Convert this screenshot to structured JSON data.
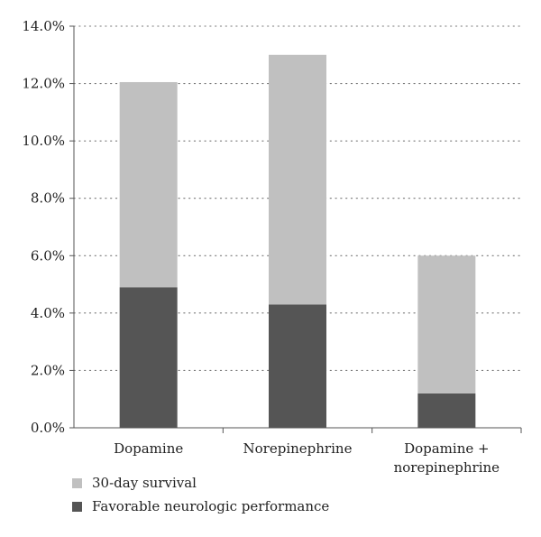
{
  "chart_data": {
    "type": "bar",
    "stacked": true,
    "categories": [
      [
        "Dopamine"
      ],
      [
        "Norepinephrine"
      ],
      [
        "Dopamine +",
        "norepinephrine"
      ]
    ],
    "series": [
      {
        "name": "Favorable neurologic performance",
        "values": [
          4.9,
          4.3,
          1.2
        ],
        "color": "#555555"
      },
      {
        "name": "30-day survival",
        "values": [
          7.15,
          8.7,
          4.8
        ],
        "color": "#c0c0c0"
      }
    ],
    "totals": [
      12.05,
      13.0,
      6.0
    ],
    "title": "",
    "xlabel": "",
    "ylabel": "",
    "ylim": [
      0,
      14
    ],
    "yticks": [
      "0.0%",
      "2.0%",
      "4.0%",
      "6.0%",
      "8.0%",
      "10.0%",
      "12.0%",
      "14.0%"
    ],
    "grid": true,
    "legend": {
      "placement": "bottom-left",
      "entries": [
        {
          "label": "30-day survival",
          "color": "#c0c0c0"
        },
        {
          "label": "Favorable neurologic performance",
          "color": "#555555"
        }
      ]
    }
  }
}
